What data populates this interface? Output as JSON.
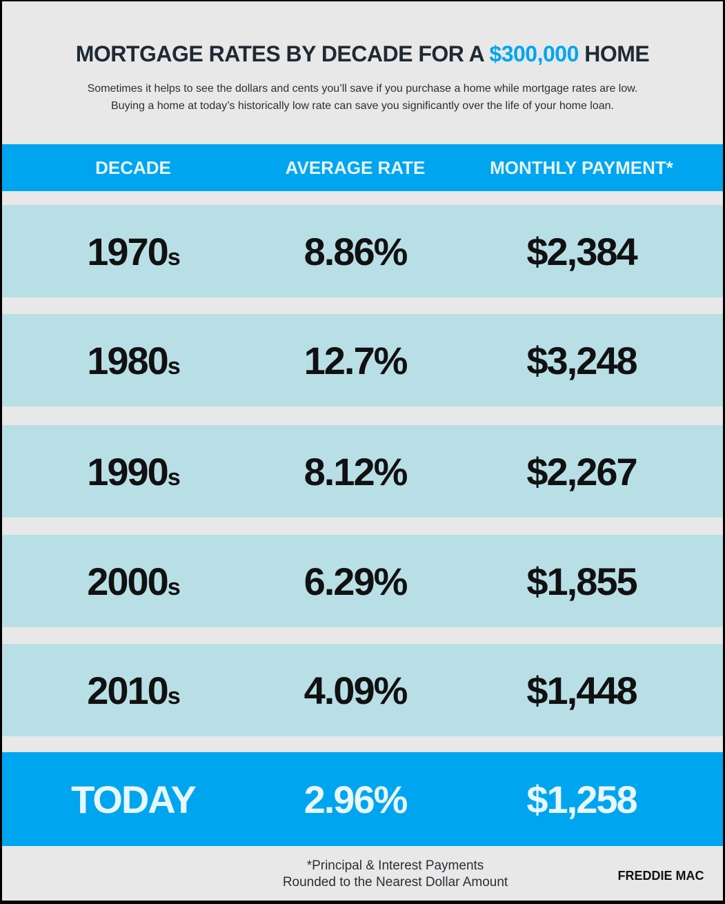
{
  "title": {
    "prefix": "MORTGAGE RATES BY DECADE FOR A",
    "highlight": "$300,000",
    "suffix": "HOME"
  },
  "subtitle": [
    "Sometimes it helps to see the dollars and cents you’ll save if you purchase a home while mortgage rates are low.",
    "Buying a home at today’s historically low rate can save you significantly over the life of your home loan."
  ],
  "colors": {
    "accent": "#00a5f0",
    "row": "#b9dfe6",
    "background": "#e8e8e8"
  },
  "chart_data": {
    "type": "table",
    "title": "Mortgage Rates by Decade for a $300,000 Home",
    "columns": [
      "DECADE",
      "AVERAGE RATE",
      "MONTHLY PAYMENT*"
    ],
    "rows": [
      {
        "decade": "1970",
        "suffix": "s",
        "rate": "8.86%",
        "payment": "$2,384"
      },
      {
        "decade": "1980",
        "suffix": "s",
        "rate": "12.7%",
        "payment": "$3,248"
      },
      {
        "decade": "1990",
        "suffix": "s",
        "rate": "8.12%",
        "payment": "$2,267"
      },
      {
        "decade": "2000",
        "suffix": "s",
        "rate": "6.29%",
        "payment": "$1,855"
      },
      {
        "decade": "2010",
        "suffix": "s",
        "rate": "4.09%",
        "payment": "$1,448"
      }
    ],
    "today": {
      "decade": "TODAY",
      "rate": "2.96%",
      "payment": "$1,258"
    }
  },
  "footnote": [
    "*Principal & Interest Payments",
    "Rounded to the Nearest Dollar Amount"
  ],
  "source": "FREDDIE MAC"
}
